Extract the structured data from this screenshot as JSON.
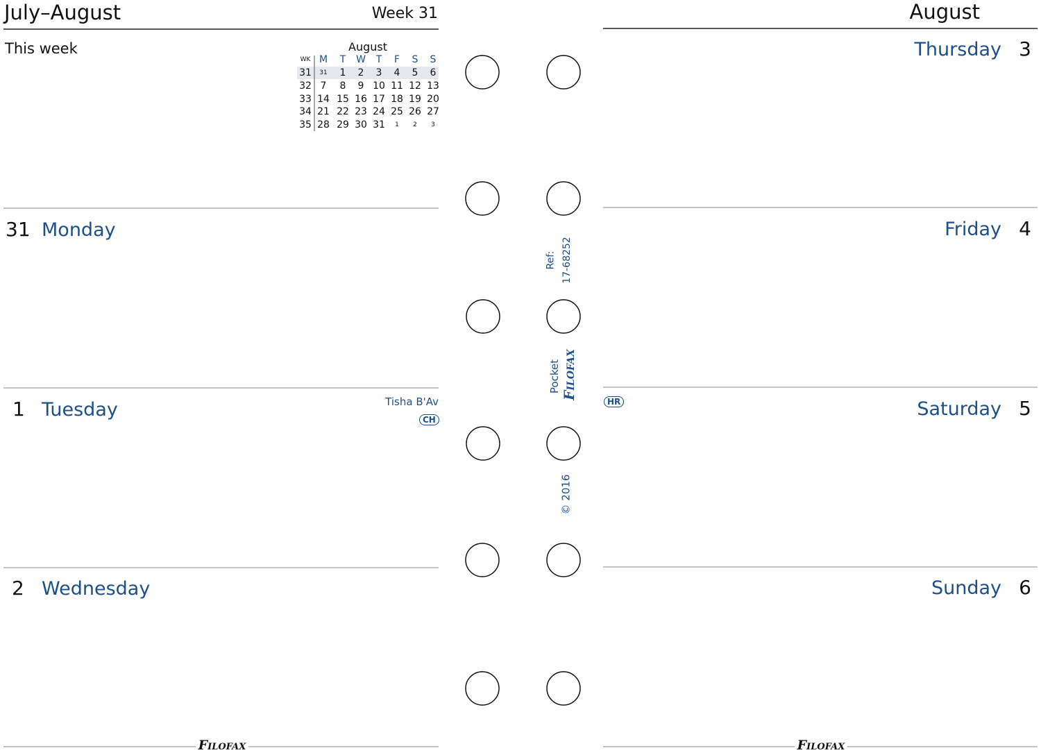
{
  "left_page": {
    "title": "July–August",
    "week": "Week 31",
    "this_week": "This week",
    "mini_calendar": {
      "month": "August",
      "headers": [
        "WK",
        "M",
        "T",
        "W",
        "T",
        "F",
        "S",
        "S"
      ],
      "rows": [
        [
          31,
          31,
          1,
          2,
          3,
          4,
          5,
          6
        ],
        [
          32,
          7,
          8,
          9,
          10,
          11,
          12,
          13
        ],
        [
          33,
          14,
          15,
          16,
          17,
          18,
          19,
          20
        ],
        [
          34,
          21,
          22,
          23,
          24,
          25,
          26,
          27
        ],
        [
          35,
          28,
          29,
          30,
          31,
          1,
          2,
          3
        ]
      ]
    },
    "days": [
      {
        "number": 31,
        "name": "Monday"
      },
      {
        "number": 1,
        "name": "Tuesday",
        "note": "Tisha B'Av",
        "badge": "CH"
      },
      {
        "number": 2,
        "name": "Wednesday"
      }
    ],
    "footer_logo": "Filofax"
  },
  "spine": {
    "ref_label": "Ref:",
    "ref_number": "17-68252",
    "size": "Pocket",
    "logo": "Filofax",
    "copyright": "© 2016"
  },
  "right_page": {
    "title": "August",
    "days": [
      {
        "number": 3,
        "name": "Thursday"
      },
      {
        "number": 4,
        "name": "Friday"
      },
      {
        "number": 5,
        "name": "Saturday",
        "badge": "HR"
      },
      {
        "number": 6,
        "name": "Sunday"
      }
    ],
    "footer_logo": "Filofax"
  }
}
